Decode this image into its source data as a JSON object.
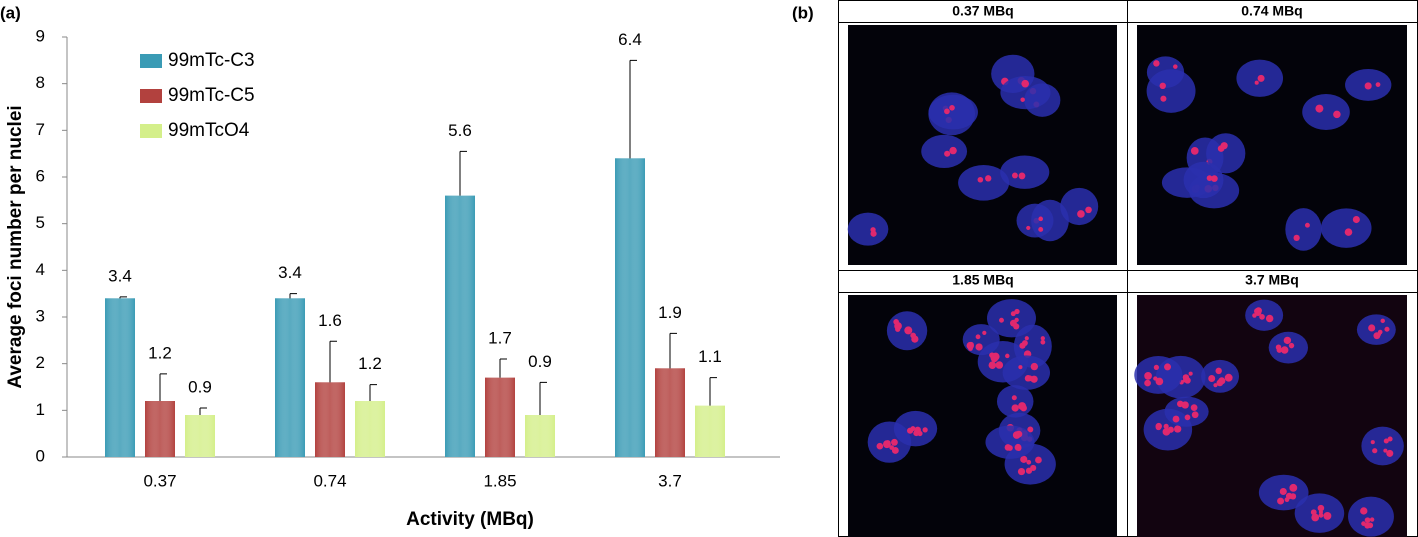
{
  "chart_data": {
    "type": "bar",
    "panel_label": "(a)",
    "x_label": "Activity (MBq)",
    "y_label": "Average foci number per nuclei",
    "categories": [
      "0.37",
      "0.74",
      "1.85",
      "3.7"
    ],
    "series": [
      {
        "name": "99mTc-C3",
        "color": "#3a9bb5",
        "values": [
          3.4,
          3.4,
          5.6,
          6.4
        ],
        "errors": [
          0.03,
          0.1,
          0.95,
          2.1
        ]
      },
      {
        "name": "99mTc-C5",
        "color": "#b2413e",
        "values": [
          1.2,
          1.6,
          1.7,
          1.9
        ],
        "errors": [
          0.58,
          0.88,
          0.4,
          0.75
        ]
      },
      {
        "name": "99mTcO4",
        "color": "#d4ef8a",
        "values": [
          0.9,
          1.2,
          0.9,
          1.1
        ],
        "errors": [
          0.15,
          0.35,
          0.7,
          0.6
        ]
      }
    ],
    "ylim": [
      0,
      9
    ],
    "yticks": [
      0,
      1,
      2,
      3,
      4,
      5,
      6,
      7,
      8,
      9
    ],
    "grid": false
  },
  "images": {
    "panel_label": "(b)",
    "titles": [
      "0.37 MBq",
      "0.74 MBq",
      "1.85 MBq",
      "3.7 MBq"
    ]
  }
}
